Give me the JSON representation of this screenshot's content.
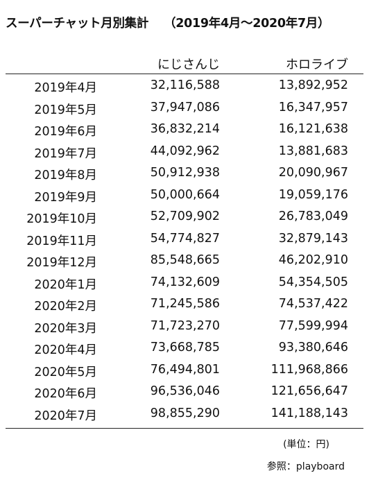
{
  "title": "スーパーチャット月別集計",
  "subtitle": "（2019年4月～2020年7月）",
  "chart_data": {
    "type": "table",
    "columns": [
      "",
      "にじさんじ",
      "ホロライブ"
    ],
    "rows": [
      {
        "month": "2019年4月",
        "nijisanji": "32,116,588",
        "hololive": "13,892,952"
      },
      {
        "month": "2019年5月",
        "nijisanji": "37,947,086",
        "hololive": "16,347,957"
      },
      {
        "month": "2019年6月",
        "nijisanji": "36,832,214",
        "hololive": "16,121,638"
      },
      {
        "month": "2019年7月",
        "nijisanji": "44,092,962",
        "hololive": "13,881,683"
      },
      {
        "month": "2019年8月",
        "nijisanji": "50,912,938",
        "hololive": "20,090,967"
      },
      {
        "month": "2019年9月",
        "nijisanji": "50,000,664",
        "hololive": "19,059,176"
      },
      {
        "month": "2019年10月",
        "nijisanji": "52,709,902",
        "hololive": "26,783,049"
      },
      {
        "month": "2019年11月",
        "nijisanji": "54,774,827",
        "hololive": "32,879,143"
      },
      {
        "month": "2019年12月",
        "nijisanji": "85,548,665",
        "hololive": "46,202,910"
      },
      {
        "month": "2020年1月",
        "nijisanji": "74,132,609",
        "hololive": "54,354,505"
      },
      {
        "month": "2020年2月",
        "nijisanji": "71,245,586",
        "hololive": "74,537,422"
      },
      {
        "month": "2020年3月",
        "nijisanji": "71,723,270",
        "hololive": "77,599,994"
      },
      {
        "month": "2020年4月",
        "nijisanji": "73,668,785",
        "hololive": "93,380,646"
      },
      {
        "month": "2020年5月",
        "nijisanji": "76,494,801",
        "hololive": "111,968,866"
      },
      {
        "month": "2020年6月",
        "nijisanji": "96,536,046",
        "hololive": "121,656,647"
      },
      {
        "month": "2020年7月",
        "nijisanji": "98,855,290",
        "hololive": "141,188,143"
      }
    ],
    "unit_note": "(単位：円)",
    "source_note": "参照：playboard"
  }
}
